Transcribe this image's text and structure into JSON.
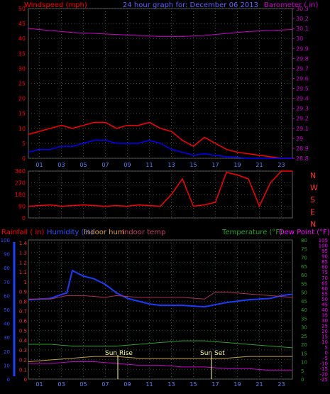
{
  "header": {
    "windspeed_label": "Windspeed (mph)",
    "title": "24 hour graph for:  December 06 2013",
    "barometer_label": "Barometer ( in)"
  },
  "bottom_header": {
    "rainfall_label": "Rainfall ( in)",
    "humidity_label": "Humidity (%)",
    "indoor_hum_label": "Indoor hum",
    "indoor_temp_label": "Indoor temp",
    "temperature_label": "Temperature (°F)",
    "dew_point_label": "Dew Point (°F)"
  },
  "colors": {
    "wind": "#ff0000",
    "gust": "#0000ff",
    "barometer": "#cc00cc",
    "humidity": "#1a3cff",
    "indoor_temp": "#b0305a",
    "temperature": "#2aa02a",
    "dewpoint": "#c89a4a",
    "rainfall": "#1e40ff",
    "sun": "#ffff80",
    "grid": "#3a4a3a"
  },
  "chart_data": [
    {
      "type": "line",
      "title": "24 hour graph for:  December 06 2013",
      "x_ticks": [
        "01",
        "03",
        "05",
        "07",
        "09",
        "11",
        "13",
        "15",
        "17",
        "19",
        "21",
        "23"
      ],
      "y_left_ticks": [
        "0",
        "5",
        "10",
        "15",
        "20",
        "25",
        "30",
        "35",
        "40",
        "45",
        "50"
      ],
      "y_right_ticks": [
        "28.8",
        "28.9",
        "29",
        "29.1",
        "29.2",
        "29.3",
        "29.4",
        "29.5",
        "29.6",
        "29.7",
        "29.8",
        "29.9",
        "30",
        "30.1",
        "30.2",
        "30.3"
      ],
      "ylim_left": [
        0,
        50
      ],
      "ylim_right": [
        28.8,
        30.3
      ],
      "series": [
        {
          "name": "Windspeed (mph)",
          "axis": "left",
          "color": "#ff0000",
          "x": [
            0,
            1,
            2,
            3,
            4,
            5,
            6,
            7,
            8,
            9,
            10,
            11,
            12,
            13,
            14,
            15,
            16,
            17,
            18,
            19,
            20,
            21,
            22,
            23,
            24
          ],
          "y": [
            8,
            9,
            10,
            11,
            10,
            11,
            12,
            12,
            10,
            11,
            11,
            12,
            10,
            9,
            6,
            4,
            7,
            5,
            3,
            2,
            1.5,
            1,
            0.5,
            0,
            0
          ]
        },
        {
          "name": "Wind gust",
          "axis": "left",
          "color": "#0000ff",
          "x": [
            0,
            1,
            2,
            3,
            4,
            5,
            6,
            7,
            8,
            9,
            10,
            11,
            12,
            13,
            14,
            15,
            16,
            17,
            18,
            19,
            20,
            21,
            22,
            23,
            24
          ],
          "y": [
            2,
            3,
            3,
            4,
            4,
            5,
            6,
            6,
            5,
            5,
            5,
            6,
            5,
            3,
            2,
            1,
            1.5,
            1,
            0.5,
            0.3,
            0,
            0,
            0,
            0,
            0
          ]
        },
        {
          "name": "Barometer ( in)",
          "axis": "right",
          "color": "#cc00cc",
          "x": [
            0,
            2,
            4,
            6,
            8,
            10,
            12,
            14,
            16,
            18,
            20,
            22,
            24
          ],
          "y": [
            30.1,
            30.08,
            30.06,
            30.05,
            30.04,
            30.03,
            30.02,
            30.02,
            30.03,
            30.05,
            30.07,
            30.08,
            30.09
          ]
        }
      ],
      "grid": true
    },
    {
      "type": "line",
      "x_ticks": [],
      "y_left_ticks": [
        "0",
        "90",
        "180",
        "270",
        "360"
      ],
      "right_labels": [
        "N",
        "W",
        "S",
        "E",
        "N"
      ],
      "ylim": [
        0,
        360
      ],
      "series": [
        {
          "name": "Wind direction",
          "color": "#ff0000",
          "x": [
            0,
            1,
            2,
            3,
            4,
            5,
            6,
            7,
            8,
            9,
            10,
            11,
            12,
            13,
            14,
            15,
            16,
            17,
            18,
            19,
            20,
            21,
            22,
            23,
            24
          ],
          "y": [
            90,
            95,
            100,
            90,
            95,
            100,
            95,
            90,
            95,
            90,
            100,
            95,
            90,
            180,
            300,
            90,
            100,
            120,
            350,
            330,
            300,
            90,
            270,
            360,
            360
          ]
        }
      ],
      "grid": true
    },
    {
      "type": "line",
      "x_ticks": [
        "01",
        "03",
        "05",
        "07",
        "09",
        "11",
        "13",
        "15",
        "17",
        "19",
        "21",
        "23"
      ],
      "sun_rise_label": "Sun Rise",
      "sun_set_label": "Sun Set",
      "y_rain_ticks": [
        "0",
        "0.1",
        "0.2",
        "0.3",
        "0.4",
        "0.5",
        "0.6",
        "0.7",
        "0.8",
        "0.9",
        "1",
        "1.1",
        "1.2",
        "1.3",
        "1.4"
      ],
      "y_hum_ticks": [
        "0",
        "10",
        "20",
        "30",
        "40",
        "50",
        "60",
        "70",
        "80",
        "90",
        "100"
      ],
      "y_temp_ticks": [
        "0",
        "5",
        "10",
        "15",
        "20",
        "25",
        "30",
        "35",
        "40",
        "45",
        "50",
        "55",
        "60",
        "65",
        "70",
        "75",
        "80"
      ],
      "y_dew_ticks": [
        "-25",
        "-20",
        "-15",
        "-10",
        "-5",
        "0",
        "5",
        "10",
        "15",
        "20",
        "25",
        "30",
        "35",
        "40",
        "45",
        "50",
        "55",
        "60",
        "65",
        "70",
        "75",
        "80",
        "85",
        "90",
        "95",
        "100",
        "105"
      ],
      "series": [
        {
          "name": "Humidity (%)",
          "color": "#1a3cff",
          "axis": "humidity",
          "x": [
            0,
            2,
            3.5,
            4,
            5,
            6,
            7,
            8,
            9,
            10,
            11,
            12,
            14,
            16,
            18,
            19,
            20,
            22,
            23,
            24
          ],
          "y": [
            57,
            58,
            62,
            78,
            74,
            72,
            68,
            62,
            58,
            56,
            54,
            53,
            53,
            52,
            55,
            56,
            57,
            58,
            60,
            61
          ]
        },
        {
          "name": "Indoor temp",
          "color": "#b0305a",
          "axis": "temp",
          "x": [
            0,
            2,
            3.5,
            5,
            7,
            8,
            10,
            12,
            14,
            16,
            17,
            18,
            20,
            22,
            24
          ],
          "y": [
            46,
            46,
            48,
            48,
            47,
            48,
            47,
            47,
            47,
            46,
            50,
            50,
            49,
            48,
            47
          ]
        },
        {
          "name": "Temperature (°F)",
          "color": "#2aa02a",
          "axis": "temp",
          "x": [
            0,
            2,
            4,
            6,
            8,
            10,
            12,
            14,
            16,
            18,
            20,
            22,
            24
          ],
          "y": [
            20,
            20,
            19,
            19,
            19,
            20,
            21,
            22,
            22,
            21,
            20,
            19,
            18
          ]
        },
        {
          "name": "Dew Point (°F)",
          "color": "#c89a4a",
          "axis": "temp",
          "x": [
            0,
            2,
            4,
            6,
            8,
            10,
            12,
            14,
            16,
            18,
            20,
            22,
            24
          ],
          "y": [
            10,
            11,
            12,
            13,
            13,
            12,
            12,
            12,
            12,
            12,
            13,
            13,
            13
          ]
        },
        {
          "name": "Indoor hum",
          "color": "#cc00cc",
          "axis": "temp",
          "x": [
            0,
            2,
            4,
            6,
            8,
            10,
            12,
            14,
            16,
            18,
            20,
            22,
            24
          ],
          "y": [
            9,
            9,
            10,
            10,
            9,
            8,
            8,
            7,
            7,
            6,
            6,
            5,
            5
          ]
        }
      ],
      "grid": true
    }
  ]
}
